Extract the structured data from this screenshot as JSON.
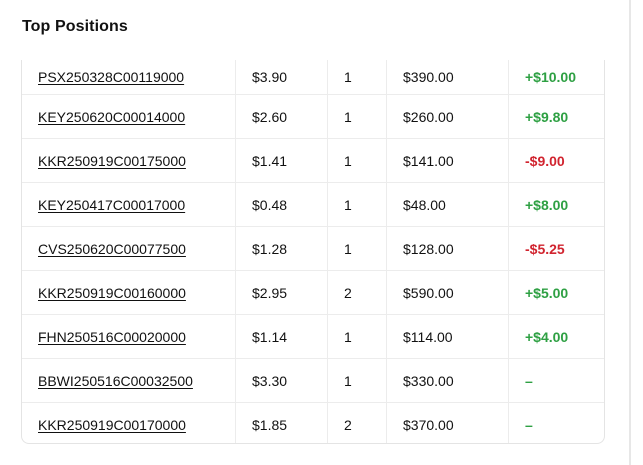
{
  "title": "Top Positions",
  "colors": {
    "positive": "#2ea043",
    "negative": "#d1242f"
  },
  "positions": [
    {
      "symbol": "PSX250328C00119000",
      "price": "$3.90",
      "qty": "1",
      "value": "$390.00",
      "pnl": "+$10.00",
      "sign": "pos"
    },
    {
      "symbol": "KEY250620C00014000",
      "price": "$2.60",
      "qty": "1",
      "value": "$260.00",
      "pnl": "+$9.80",
      "sign": "pos"
    },
    {
      "symbol": "KKR250919C00175000",
      "price": "$1.41",
      "qty": "1",
      "value": "$141.00",
      "pnl": "-$9.00",
      "sign": "neg"
    },
    {
      "symbol": "KEY250417C00017000",
      "price": "$0.48",
      "qty": "1",
      "value": "$48.00",
      "pnl": "+$8.00",
      "sign": "pos"
    },
    {
      "symbol": "CVS250620C00077500",
      "price": "$1.28",
      "qty": "1",
      "value": "$128.00",
      "pnl": "-$5.25",
      "sign": "neg"
    },
    {
      "symbol": "KKR250919C00160000",
      "price": "$2.95",
      "qty": "2",
      "value": "$590.00",
      "pnl": "+$5.00",
      "sign": "pos"
    },
    {
      "symbol": "FHN250516C00020000",
      "price": "$1.14",
      "qty": "1",
      "value": "$114.00",
      "pnl": "+$4.00",
      "sign": "pos"
    },
    {
      "symbol": "BBWI250516C00032500",
      "price": "$3.30",
      "qty": "1",
      "value": "$330.00",
      "pnl": "–",
      "sign": "flat"
    },
    {
      "symbol": "KKR250919C00170000",
      "price": "$1.85",
      "qty": "2",
      "value": "$370.00",
      "pnl": "–",
      "sign": "flat"
    }
  ]
}
